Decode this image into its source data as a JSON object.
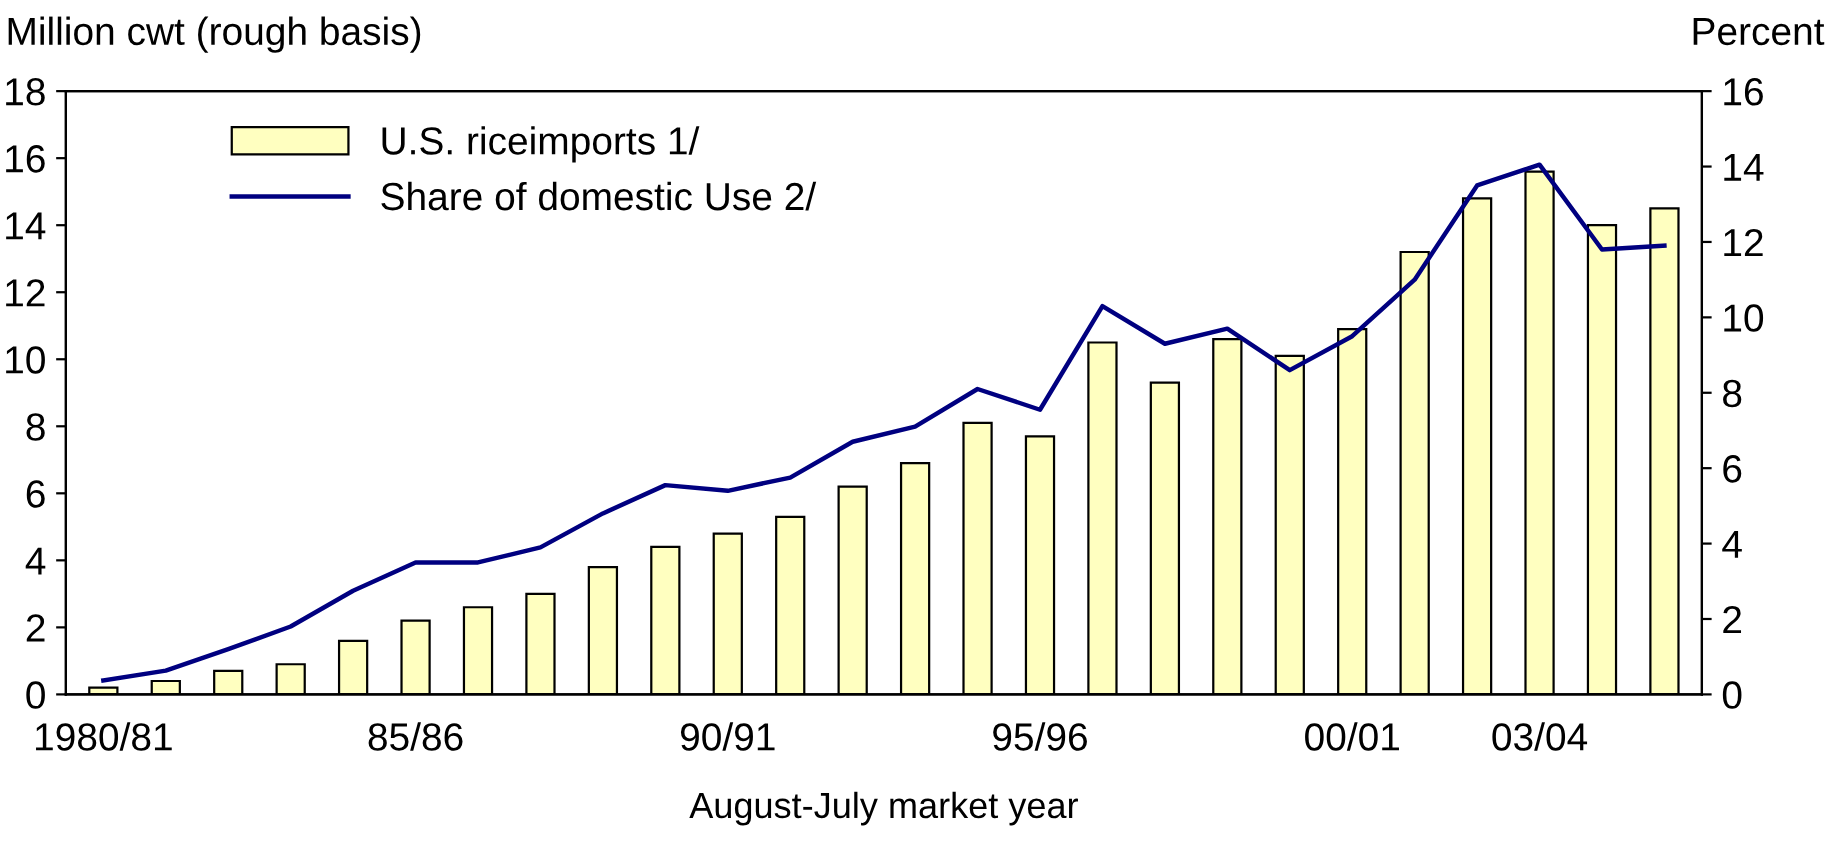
{
  "chart_data": {
    "type": "bar",
    "xlabel": "August-July market year",
    "ylabel": "Million cwt (rough basis)",
    "y2label": "Percent",
    "categories": [
      "1980/81",
      null,
      null,
      null,
      null,
      "85/86",
      null,
      null,
      null,
      null,
      "90/91",
      null,
      null,
      null,
      null,
      "95/96",
      null,
      null,
      null,
      null,
      "00/01",
      null,
      null,
      "03/04",
      null,
      null
    ],
    "series": [
      {
        "name": "U.S. riceimports 1/",
        "color": "#ffffc0",
        "values": [
          0.2,
          0.4,
          0.7,
          0.9,
          1.6,
          2.2,
          2.6,
          3.0,
          3.8,
          4.4,
          4.8,
          5.3,
          6.2,
          6.9,
          8.1,
          7.7,
          10.5,
          9.3,
          10.6,
          10.1,
          10.9,
          13.2,
          14.8,
          15.6,
          14.0,
          14.5
        ]
      },
      {
        "name": "Share of domestic Use 2/",
        "type": "line",
        "axis": "y2",
        "color": "#000080",
        "values": [
          0.37,
          0.63,
          1.2,
          1.8,
          2.75,
          3.5,
          3.5,
          3.9,
          4.8,
          5.55,
          5.4,
          5.75,
          6.7,
          7.1,
          8.1,
          7.55,
          10.3,
          9.3,
          9.7,
          8.6,
          9.5,
          11.0,
          13.5,
          14.05,
          11.8,
          11.9
        ]
      }
    ],
    "ylim": [
      0,
      18
    ],
    "yticks": [
      0,
      2,
      4,
      6,
      8,
      10,
      12,
      14,
      16,
      18
    ],
    "y2lim": [
      0,
      16
    ],
    "y2ticks": [
      0,
      2,
      4,
      6,
      8,
      10,
      12,
      14,
      16
    ],
    "grid": false,
    "legend": "top left",
    "marker": "none"
  }
}
